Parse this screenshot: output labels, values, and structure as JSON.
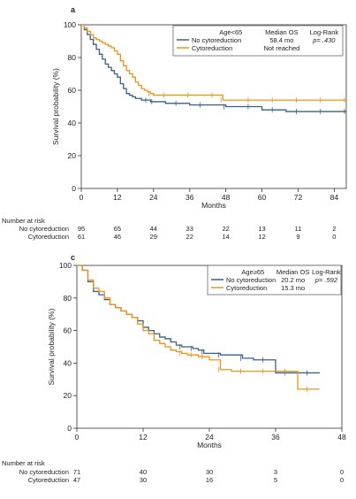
{
  "chart_data": [
    {
      "type": "line",
      "panel": "a",
      "xlabel": "Months",
      "ylabel": "Survival probability (%)",
      "xlim": [
        0,
        88
      ],
      "ylim": [
        0,
        100
      ],
      "xticks": [
        0,
        12,
        24,
        36,
        48,
        60,
        72,
        84
      ],
      "yticks": [
        0,
        20,
        40,
        60,
        80,
        100
      ],
      "legend": {
        "position": "top-right",
        "group_header": "Age<65",
        "col2_header": "Median OS",
        "col3_header": "Log-Rank",
        "p_value": "p= .430"
      },
      "series": [
        {
          "name": "No cytoreduction",
          "median_os": "58.4 mo",
          "color": "#3b5f8a",
          "x": [
            0,
            1,
            2,
            3,
            4,
            5,
            6,
            7,
            8,
            9,
            10,
            11,
            12,
            13,
            14,
            15,
            16,
            17,
            18,
            19,
            20,
            21,
            22,
            23,
            24,
            28,
            32,
            36,
            40,
            44,
            48,
            52,
            56,
            60,
            64,
            68,
            72,
            76,
            80,
            84,
            88
          ],
          "y": [
            100,
            97,
            94,
            91,
            88,
            85,
            82,
            79,
            76,
            74,
            72,
            70,
            68,
            64,
            61,
            58,
            57,
            56,
            55,
            55,
            54,
            54,
            54,
            53,
            53,
            52,
            52,
            51,
            51,
            51,
            50,
            50,
            50,
            48,
            48,
            47,
            47,
            47,
            47,
            47,
            47
          ]
        },
        {
          "name": "Cytoreduction",
          "median_os": "Not reached",
          "color": "#f39219",
          "x": [
            0,
            1,
            2,
            3,
            4,
            5,
            6,
            7,
            8,
            9,
            10,
            11,
            12,
            13,
            14,
            15,
            16,
            17,
            18,
            19,
            20,
            21,
            22,
            23,
            24,
            28,
            32,
            36,
            40,
            44,
            46,
            47,
            52,
            56,
            60,
            64,
            68,
            72,
            76,
            80,
            84,
            88
          ],
          "y": [
            100,
            98,
            96,
            94,
            92,
            91,
            90,
            89,
            88,
            87,
            86,
            84,
            82,
            78,
            75,
            72,
            70,
            68,
            65,
            63,
            61,
            60,
            59,
            58,
            57,
            57,
            57,
            57,
            57,
            57,
            57,
            54,
            54,
            54,
            54,
            54,
            54,
            54,
            54,
            54,
            54,
            54
          ]
        }
      ],
      "risk_table": {
        "title": "Number at risk",
        "times": [
          0,
          12,
          24,
          36,
          48,
          60,
          72,
          84
        ],
        "rows": [
          {
            "label": "No cytoreduction",
            "values": [
              "95",
              "65",
              "44",
              "33",
              "22",
              "13",
              "11",
              "2"
            ]
          },
          {
            "label": "Cytoreduction",
            "values": [
              "61",
              "46",
              "29",
              "22",
              "14",
              "12",
              "9",
              "0"
            ]
          }
        ]
      }
    },
    {
      "type": "line",
      "panel": "c",
      "xlabel": "Months",
      "ylabel": "Survival probability (%)",
      "xlim": [
        0,
        48
      ],
      "ylim": [
        0,
        100
      ],
      "xticks": [
        0,
        12,
        24,
        36,
        48
      ],
      "yticks": [
        0,
        20,
        40,
        60,
        80,
        100
      ],
      "legend": {
        "position": "top-right",
        "group_header": "Age≥65",
        "col2_header": "Median OS",
        "col3_header": "Log-Rank",
        "p_value": "p= .592"
      },
      "series": [
        {
          "name": "No cytoreduction",
          "median_os": "20.2 mo",
          "color": "#3b5f8a",
          "x": [
            0,
            1,
            2,
            3,
            4,
            5,
            6,
            7,
            8,
            9,
            10,
            11,
            12,
            13,
            14,
            15,
            16,
            17,
            18,
            19,
            20,
            21,
            22,
            23,
            24,
            26,
            28,
            30,
            32,
            34,
            36,
            38,
            40,
            42,
            44
          ],
          "y": [
            100,
            97,
            90,
            84,
            82,
            79,
            76,
            74,
            72,
            70,
            68,
            66,
            62,
            60,
            58,
            56,
            55,
            53,
            51,
            50,
            50,
            49,
            48,
            46,
            46,
            45,
            45,
            43,
            42,
            42,
            34,
            34,
            34,
            34,
            34
          ]
        },
        {
          "name": "Cytoreduction",
          "median_os": "15.3 mo",
          "color": "#f39219",
          "x": [
            0,
            1,
            2,
            3,
            4,
            5,
            6,
            7,
            8,
            9,
            10,
            11,
            12,
            13,
            14,
            15,
            16,
            17,
            18,
            19,
            20,
            21,
            22,
            23,
            24,
            26,
            28,
            30,
            32,
            34,
            36,
            38,
            40,
            42,
            44
          ],
          "y": [
            100,
            97,
            91,
            86,
            84,
            80,
            76,
            74,
            72,
            70,
            68,
            64,
            60,
            58,
            54,
            52,
            50,
            48,
            47,
            46,
            45,
            45,
            44,
            44,
            42,
            36,
            35,
            35,
            35,
            35,
            35,
            35,
            24,
            24,
            24
          ]
        }
      ],
      "risk_table": {
        "title": "Number at risk",
        "times": [
          0,
          12,
          24,
          36,
          48
        ],
        "rows": [
          {
            "label": "No cytoreduction",
            "values": [
              "71",
              "40",
              "30",
              "3",
              "0"
            ]
          },
          {
            "label": "Cytoreduction",
            "values": [
              "47",
              "30",
              "16",
              "5",
              "0"
            ]
          }
        ]
      }
    }
  ]
}
